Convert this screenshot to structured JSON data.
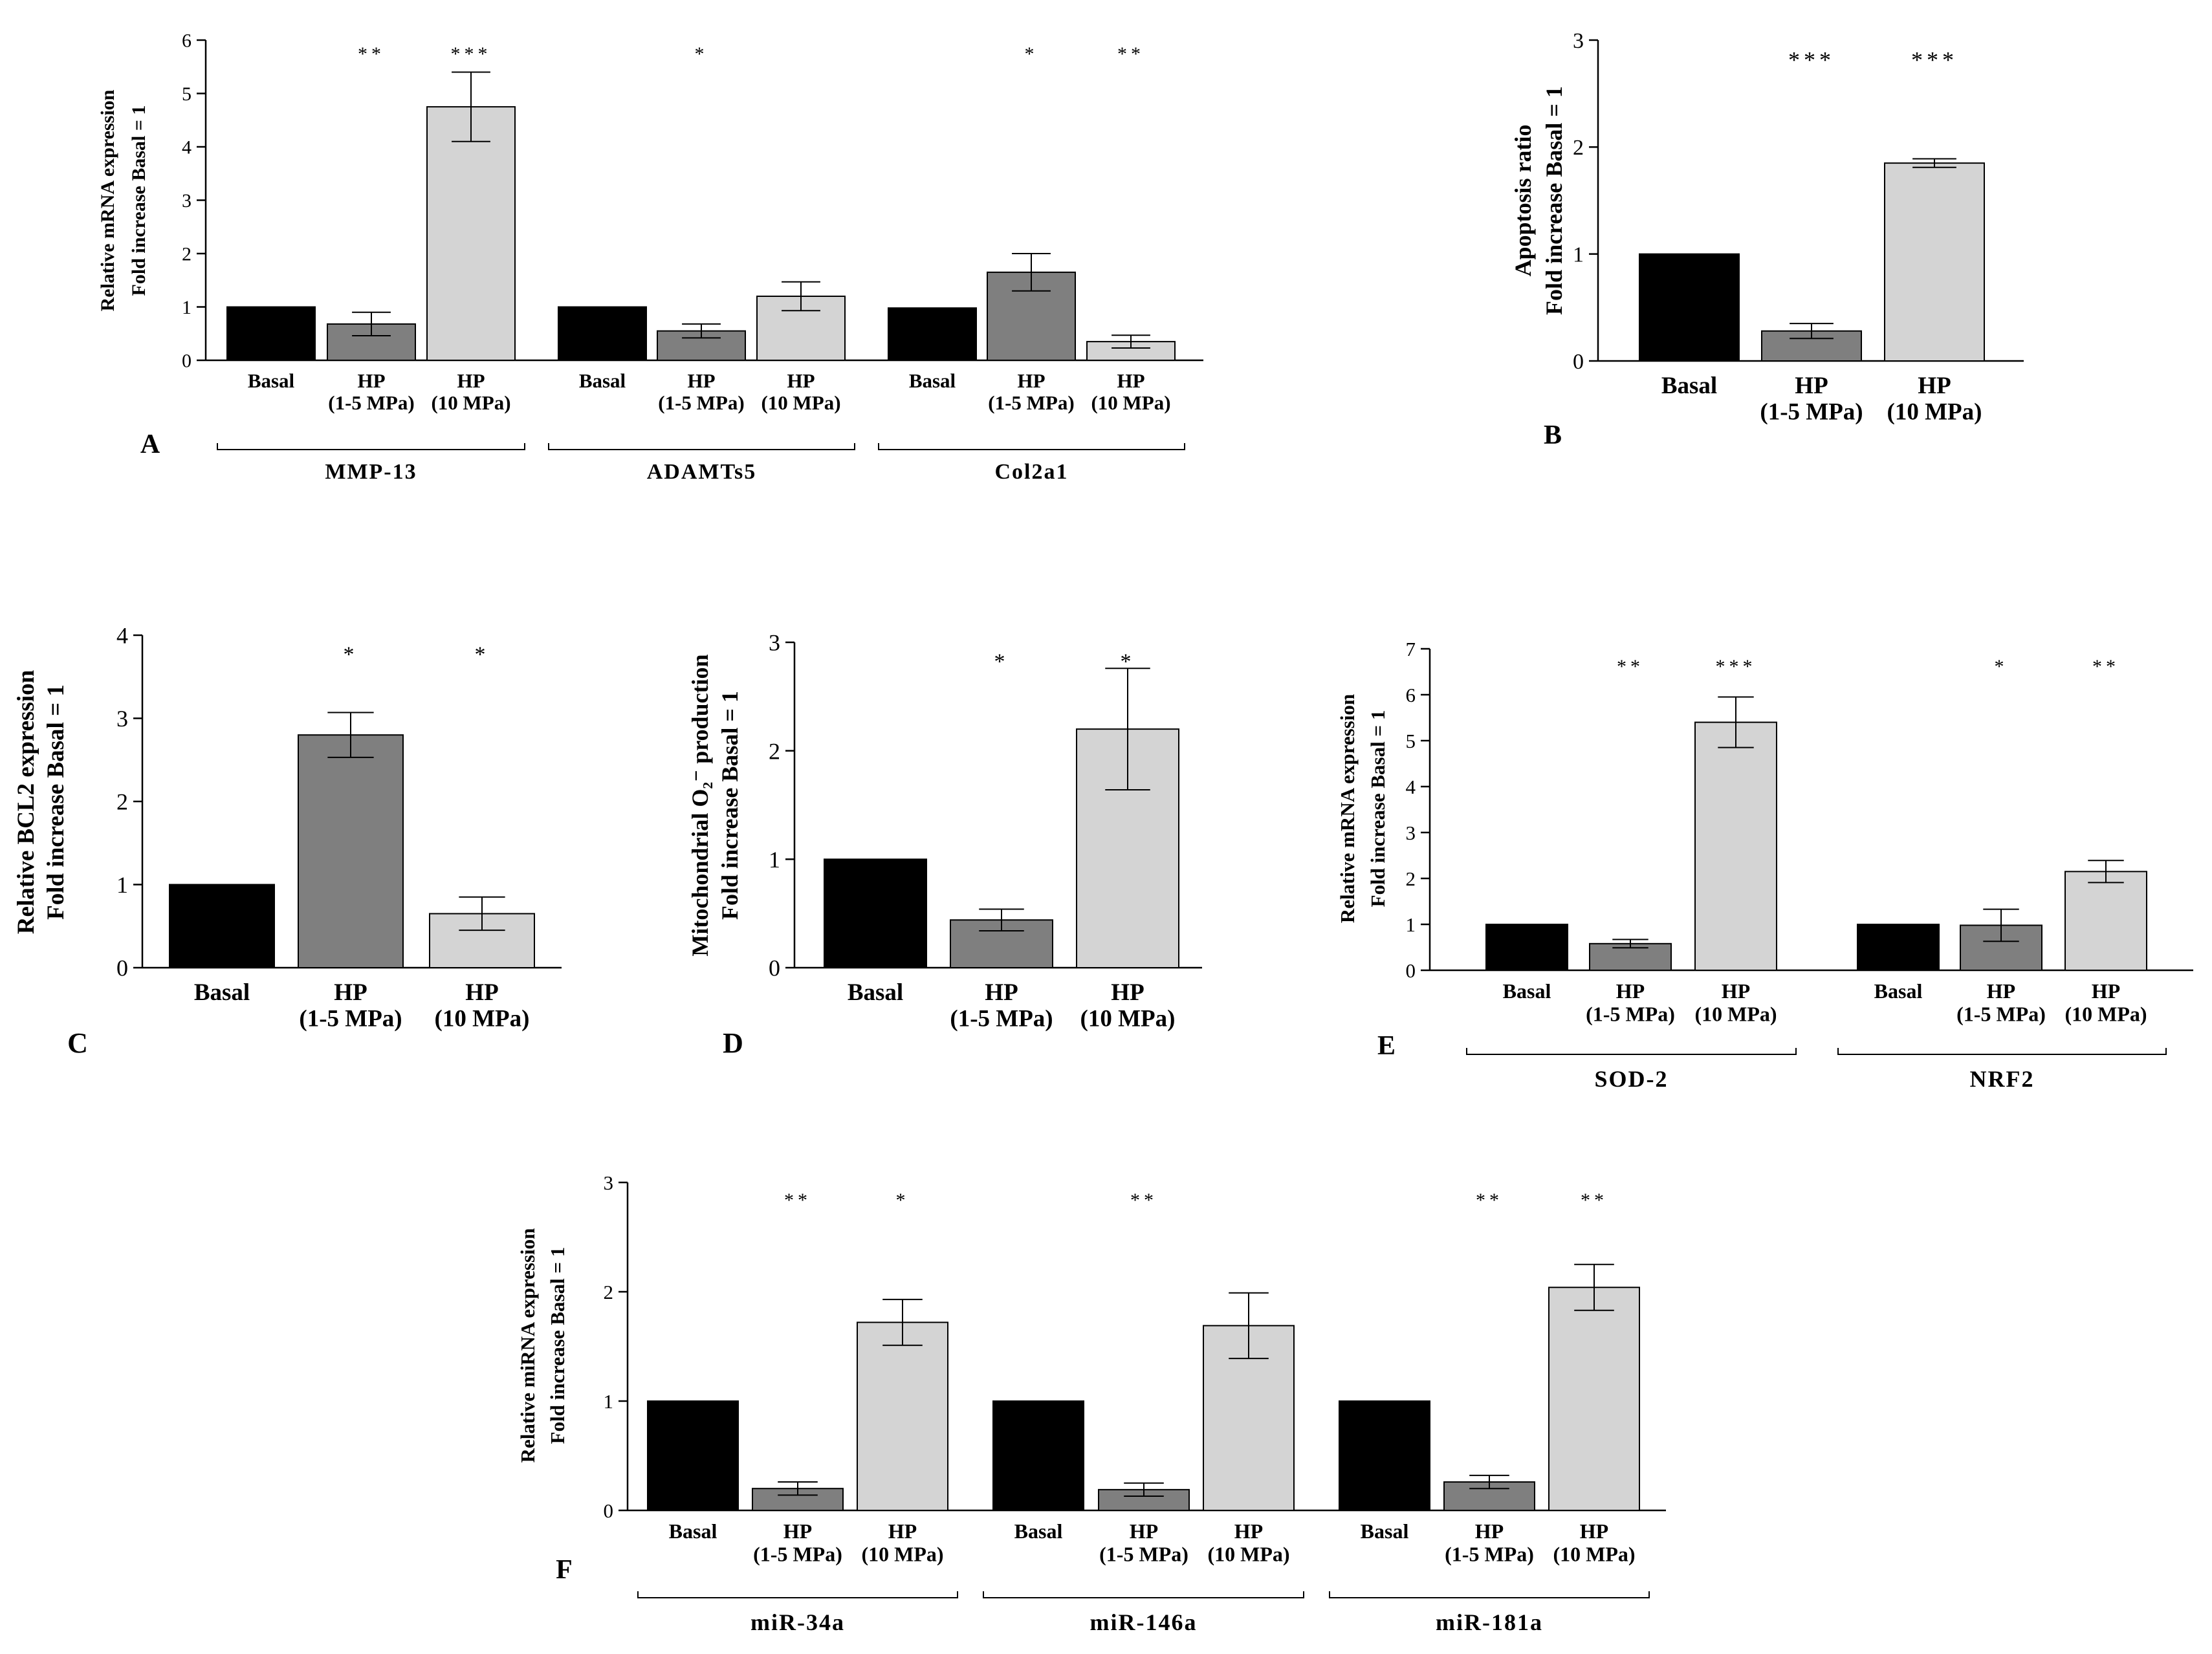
{
  "colors": {
    "basal": "#000000",
    "hp_low": "#7f7f7f",
    "hp_high": "#d4d4d4",
    "axis": "#000000"
  },
  "chart_data": [
    {
      "panel": "A",
      "type": "bar",
      "ylabel": [
        "Relative mRNA expression",
        "Fold increase Basal = 1"
      ],
      "ylim": [
        0,
        6
      ],
      "yticks": [
        0,
        1,
        2,
        3,
        4,
        5,
        6
      ],
      "groups": [
        {
          "label": "MMP-13",
          "bars": [
            {
              "category": [
                "Basal"
              ],
              "value": 1.0,
              "error": 0,
              "sig": ""
            },
            {
              "category": [
                "HP",
                "(1-5 MPa)"
              ],
              "value": 0.68,
              "error": 0.22,
              "sig": "**"
            },
            {
              "category": [
                "HP",
                "(10 MPa)"
              ],
              "value": 4.75,
              "error": 0.65,
              "sig": "***"
            }
          ]
        },
        {
          "label": "ADAMTs5",
          "bars": [
            {
              "category": [
                "Basal"
              ],
              "value": 1.0,
              "error": 0,
              "sig": ""
            },
            {
              "category": [
                "HP",
                "(1-5 MPa)"
              ],
              "value": 0.55,
              "error": 0.13,
              "sig": "*"
            },
            {
              "category": [
                "HP",
                "(10 MPa)"
              ],
              "value": 1.2,
              "error": 0.27,
              "sig": ""
            }
          ]
        },
        {
          "label": "Col2a1",
          "bars": [
            {
              "category": [
                "Basal"
              ],
              "value": 0.98,
              "error": 0,
              "sig": ""
            },
            {
              "category": [
                "HP",
                "(1-5 MPa)"
              ],
              "value": 1.65,
              "error": 0.35,
              "sig": "*"
            },
            {
              "category": [
                "HP",
                "(10 MPa)"
              ],
              "value": 0.35,
              "error": 0.12,
              "sig": "**"
            }
          ]
        }
      ]
    },
    {
      "panel": "B",
      "type": "bar",
      "ylabel": [
        "Apoptosis ratio",
        "Fold increase Basal = 1"
      ],
      "ylim": [
        0,
        3
      ],
      "yticks": [
        0,
        1,
        2,
        3
      ],
      "groups": [
        {
          "label": "",
          "bars": [
            {
              "category": [
                "Basal"
              ],
              "value": 1.0,
              "error": 0,
              "sig": ""
            },
            {
              "category": [
                "HP",
                "(1-5 MPa)"
              ],
              "value": 0.28,
              "error": 0.07,
              "sig": "***"
            },
            {
              "category": [
                "HP",
                "(10 MPa)"
              ],
              "value": 1.85,
              "error": 0.04,
              "sig": "***"
            }
          ]
        }
      ]
    },
    {
      "panel": "C",
      "type": "bar",
      "ylabel": [
        "Relative BCL2 expression",
        "Fold increase Basal = 1"
      ],
      "ylim": [
        0,
        4
      ],
      "yticks": [
        0,
        1,
        2,
        3,
        4
      ],
      "groups": [
        {
          "label": "",
          "bars": [
            {
              "category": [
                "Basal"
              ],
              "value": 1.0,
              "error": 0,
              "sig": ""
            },
            {
              "category": [
                "HP",
                "(1-5 MPa)"
              ],
              "value": 2.8,
              "error": 0.27,
              "sig": "*"
            },
            {
              "category": [
                "HP",
                "(10 MPa)"
              ],
              "value": 0.65,
              "error": 0.2,
              "sig": "*"
            }
          ]
        }
      ]
    },
    {
      "panel": "D",
      "type": "bar",
      "ylabel": [
        "Mitochondrial O₂⁻ production",
        "Fold increase Basal = 1"
      ],
      "ylim": [
        0,
        3
      ],
      "yticks": [
        0,
        1,
        2,
        3
      ],
      "groups": [
        {
          "label": "",
          "bars": [
            {
              "category": [
                "Basal"
              ],
              "value": 1.0,
              "error": 0,
              "sig": ""
            },
            {
              "category": [
                "HP",
                "(1-5 MPa)"
              ],
              "value": 0.44,
              "error": 0.1,
              "sig": "*"
            },
            {
              "category": [
                "HP",
                "(10 MPa)"
              ],
              "value": 2.2,
              "error": 0.56,
              "sig": "*"
            }
          ]
        }
      ]
    },
    {
      "panel": "E",
      "type": "bar",
      "ylabel": [
        "Relative mRNA expression",
        "Fold increase Basal = 1"
      ],
      "ylim": [
        0,
        7
      ],
      "yticks": [
        0,
        1,
        2,
        3,
        4,
        5,
        6,
        7
      ],
      "groups": [
        {
          "label": "SOD-2",
          "bars": [
            {
              "category": [
                "Basal"
              ],
              "value": 1.0,
              "error": 0,
              "sig": ""
            },
            {
              "category": [
                "HP",
                "(1-5 MPa)"
              ],
              "value": 0.58,
              "error": 0.09,
              "sig": "**"
            },
            {
              "category": [
                "HP",
                "(10 MPa)"
              ],
              "value": 5.4,
              "error": 0.55,
              "sig": "***"
            }
          ]
        },
        {
          "label": "NRF2",
          "bars": [
            {
              "category": [
                "Basal"
              ],
              "value": 1.0,
              "error": 0,
              "sig": ""
            },
            {
              "category": [
                "HP",
                "(1-5 MPa)"
              ],
              "value": 0.98,
              "error": 0.35,
              "sig": "*"
            },
            {
              "category": [
                "HP",
                "(10 MPa)"
              ],
              "value": 2.15,
              "error": 0.24,
              "sig": "**"
            }
          ]
        }
      ]
    },
    {
      "panel": "F",
      "type": "bar",
      "ylabel": [
        "Relative miRNA expression",
        "Fold increase Basal = 1"
      ],
      "ylim": [
        0,
        3
      ],
      "yticks": [
        0,
        1,
        2,
        3
      ],
      "groups": [
        {
          "label": "miR-34a",
          "bars": [
            {
              "category": [
                "Basal"
              ],
              "value": 1.0,
              "error": 0,
              "sig": ""
            },
            {
              "category": [
                "HP",
                "(1-5 MPa)"
              ],
              "value": 0.2,
              "error": 0.06,
              "sig": "**"
            },
            {
              "category": [
                "HP",
                "(10 MPa)"
              ],
              "value": 1.72,
              "error": 0.21,
              "sig": "*"
            }
          ]
        },
        {
          "label": "miR-146a",
          "bars": [
            {
              "category": [
                "Basal"
              ],
              "value": 1.0,
              "error": 0,
              "sig": ""
            },
            {
              "category": [
                "HP",
                "(1-5 MPa)"
              ],
              "value": 0.19,
              "error": 0.06,
              "sig": "**"
            },
            {
              "category": [
                "HP",
                "(10 MPa)"
              ],
              "value": 1.69,
              "error": 0.3,
              "sig": ""
            }
          ]
        },
        {
          "label": "miR-181a",
          "bars": [
            {
              "category": [
                "Basal"
              ],
              "value": 1.0,
              "error": 0,
              "sig": ""
            },
            {
              "category": [
                "HP",
                "(1-5 MPa)"
              ],
              "value": 0.26,
              "error": 0.06,
              "sig": "**"
            },
            {
              "category": [
                "HP",
                "(10 MPa)"
              ],
              "value": 2.04,
              "error": 0.21,
              "sig": "**"
            }
          ]
        }
      ]
    }
  ]
}
